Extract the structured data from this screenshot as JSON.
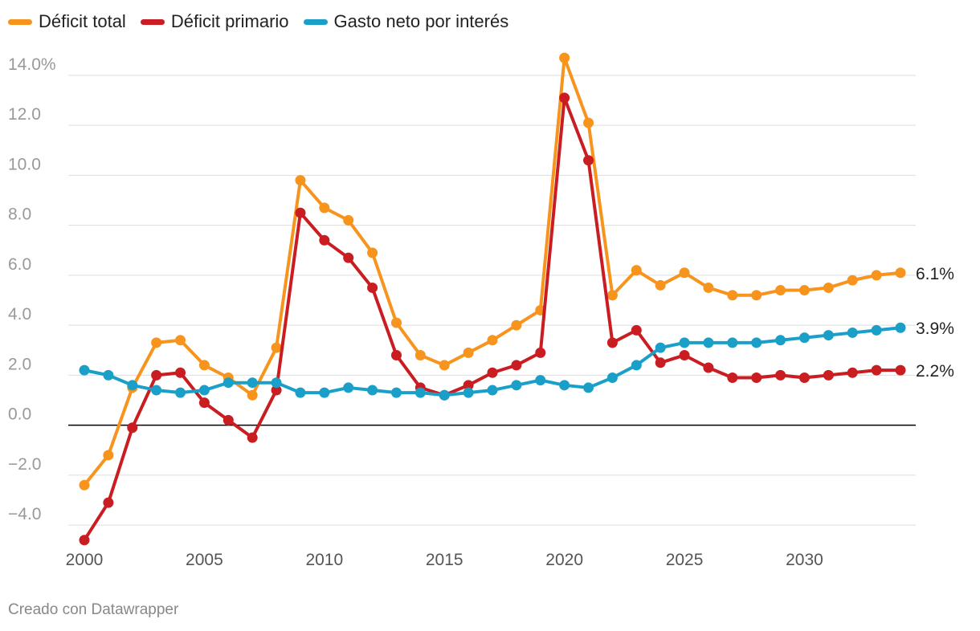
{
  "chart_data": {
    "type": "line",
    "title": "",
    "xlabel": "",
    "ylabel": "",
    "x": [
      2000,
      2001,
      2002,
      2003,
      2004,
      2005,
      2006,
      2007,
      2008,
      2009,
      2010,
      2011,
      2012,
      2013,
      2014,
      2015,
      2016,
      2017,
      2018,
      2019,
      2020,
      2021,
      2022,
      2023,
      2024,
      2025,
      2026,
      2027,
      2028,
      2029,
      2030,
      2031,
      2032,
      2033,
      2034
    ],
    "xlim": [
      2000,
      2034
    ],
    "ylim": [
      -4.8,
      14.8
    ],
    "x_ticks": [
      2000,
      2005,
      2010,
      2015,
      2020,
      2025,
      2030
    ],
    "x_tick_labels": [
      "2000",
      "2005",
      "2010",
      "2015",
      "2020",
      "2025",
      "2030"
    ],
    "y_ticks": [
      14,
      12,
      10,
      8,
      6,
      4,
      2,
      0,
      -2,
      -4
    ],
    "y_tick_labels": [
      "14.0%",
      "12.0",
      "10.0",
      "8.0",
      "6.0",
      "4.0",
      "2.0",
      "0.0",
      "−2.0",
      "−4.0"
    ],
    "grid": true,
    "legend_position": "top-left",
    "series": [
      {
        "name": "Déficit total",
        "color": "#f7941d",
        "end_label": "6.1%",
        "values": [
          -2.4,
          -1.2,
          1.5,
          3.3,
          3.4,
          2.4,
          1.9,
          1.2,
          3.1,
          9.8,
          8.7,
          8.2,
          6.9,
          4.1,
          2.8,
          2.4,
          2.9,
          3.4,
          4.0,
          4.6,
          14.7,
          12.1,
          5.2,
          6.2,
          5.6,
          6.1,
          5.5,
          5.2,
          5.2,
          5.4,
          5.4,
          5.5,
          5.8,
          6.0,
          6.1
        ]
      },
      {
        "name": "Déficit primario",
        "color": "#c91d22",
        "end_label": "2.2%",
        "values": [
          -4.6,
          -3.1,
          -0.1,
          2.0,
          2.1,
          0.9,
          0.2,
          -0.5,
          1.4,
          8.5,
          7.4,
          6.7,
          5.5,
          2.8,
          1.5,
          1.2,
          1.6,
          2.1,
          2.4,
          2.9,
          13.1,
          10.6,
          3.3,
          3.8,
          2.5,
          2.8,
          2.3,
          1.9,
          1.9,
          2.0,
          1.9,
          2.0,
          2.1,
          2.2,
          2.2
        ]
      },
      {
        "name": "Gasto neto por interés",
        "color": "#1aa0c8",
        "end_label": "3.9%",
        "values": [
          2.2,
          2.0,
          1.6,
          1.4,
          1.3,
          1.4,
          1.7,
          1.7,
          1.7,
          1.3,
          1.3,
          1.5,
          1.4,
          1.3,
          1.3,
          1.2,
          1.3,
          1.4,
          1.6,
          1.8,
          1.6,
          1.5,
          1.9,
          2.4,
          3.1,
          3.3,
          3.3,
          3.3,
          3.3,
          3.4,
          3.5,
          3.6,
          3.7,
          3.8,
          3.9
        ]
      }
    ]
  },
  "footer": {
    "credit": "Creado con Datawrapper"
  }
}
